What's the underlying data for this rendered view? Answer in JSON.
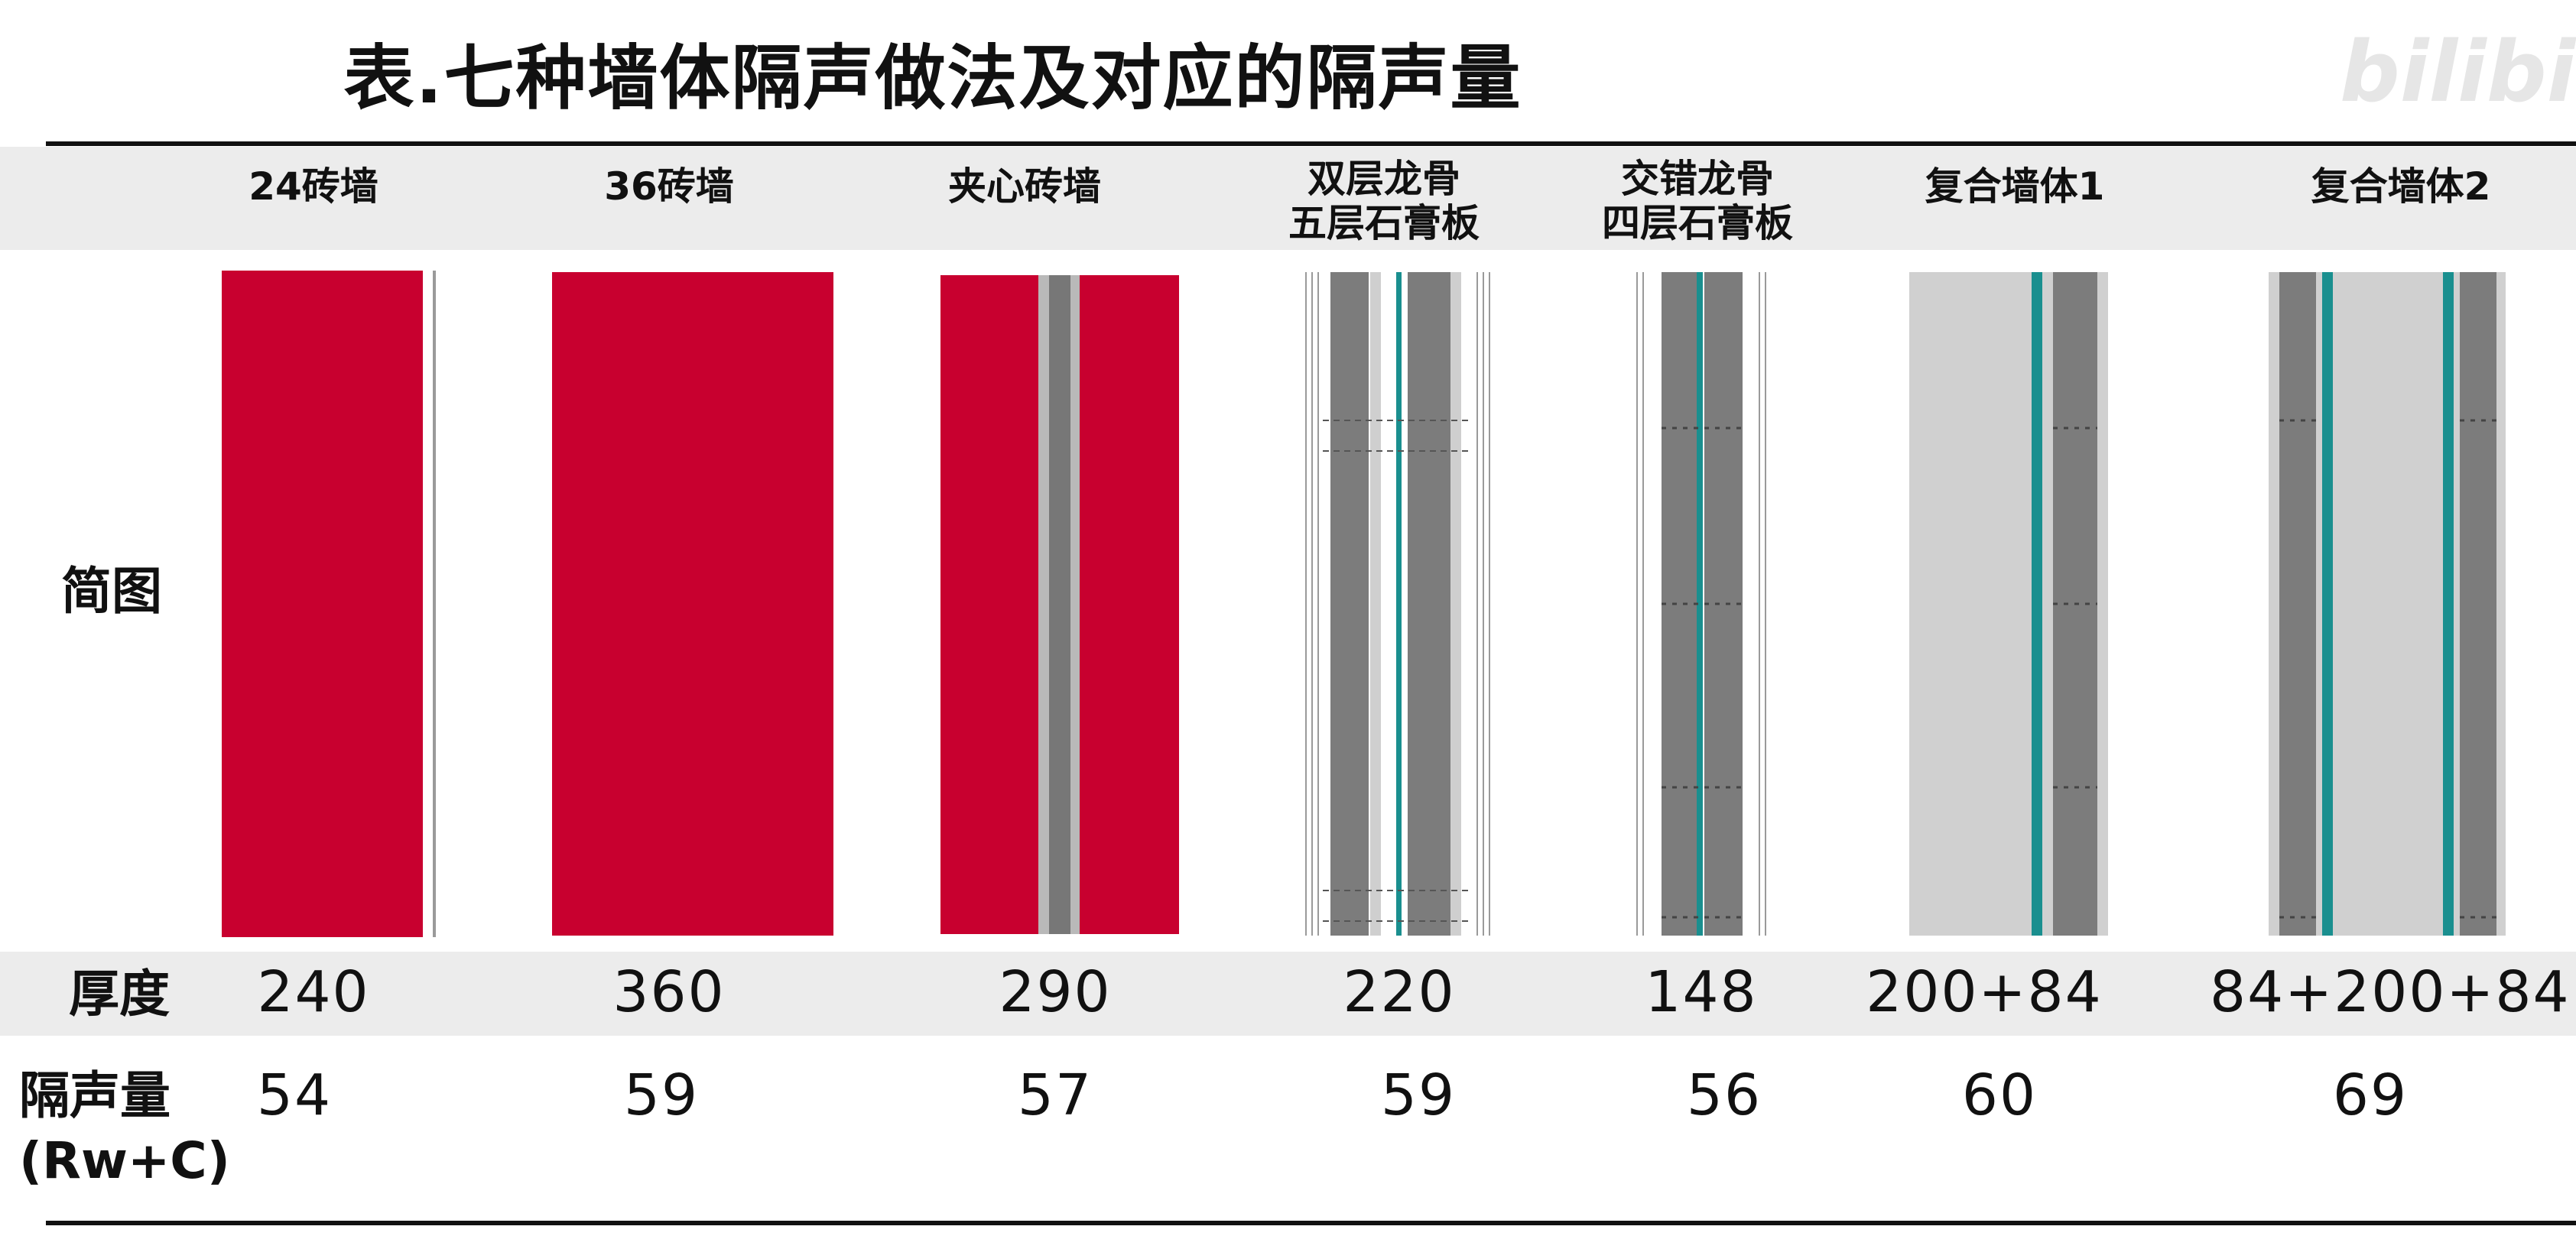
{
  "title": "表.七种墙体隔声做法及对应的隔声量",
  "watermark": "bilibili",
  "row_labels": {
    "diagram": "简图",
    "thickness": "厚度",
    "insulation": "隔声量",
    "insulation_unit": "(Rw+C)"
  },
  "columns": [
    {
      "header_line1": "24砖墙",
      "header_line2": "",
      "thickness": "240",
      "insulation": "54",
      "diagram_type": "solid-brick"
    },
    {
      "header_line1": "36砖墙",
      "header_line2": "",
      "thickness": "360",
      "insulation": "59",
      "diagram_type": "solid-brick"
    },
    {
      "header_line1": "夹心砖墙",
      "header_line2": "",
      "thickness": "290",
      "insulation": "57",
      "diagram_type": "cavity-brick"
    },
    {
      "header_line1": "双层龙骨",
      "header_line2": "五层石膏板",
      "thickness": "220",
      "insulation": "59",
      "diagram_type": "double-stud-gypsum"
    },
    {
      "header_line1": "交错龙骨",
      "header_line2": "四层石膏板",
      "thickness": "148",
      "insulation": "56",
      "diagram_type": "staggered-stud-gypsum"
    },
    {
      "header_line1": "复合墙体1",
      "header_line2": "",
      "thickness": "200+84",
      "insulation": "60",
      "diagram_type": "composite-wall-1"
    },
    {
      "header_line1": "复合墙体2",
      "header_line2": "",
      "thickness": "84+200+84",
      "insulation": "69",
      "diagram_type": "composite-wall-2"
    }
  ],
  "colors": {
    "brick": "#c8002f",
    "insulation_core": "#7a7a7a",
    "gypsum_light": "#cfcfcf",
    "membrane": "#1a8f8f",
    "band": "#ececec"
  }
}
